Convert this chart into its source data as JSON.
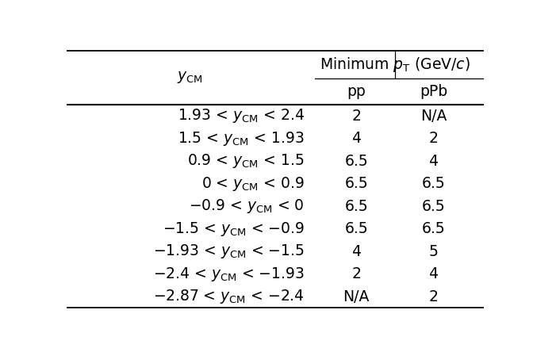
{
  "rapidity_intervals": [
    "1.93 < $y_{\\mathrm{CM}}$ < 2.4",
    "1.5 < $y_{\\mathrm{CM}}$ < 1.93",
    "0.9 < $y_{\\mathrm{CM}}$ < 1.5",
    "0 < $y_{\\mathrm{CM}}$ < 0.9",
    "$-$0.9 < $y_{\\mathrm{CM}}$ < 0",
    "$-$1.5 < $y_{\\mathrm{CM}}$ < $-$0.9",
    "$-$1.93 < $y_{\\mathrm{CM}}$ < $-$1.5",
    "$-$2.4 < $y_{\\mathrm{CM}}$ < $-$1.93",
    "$-$2.87 < $y_{\\mathrm{CM}}$ < $-$2.4"
  ],
  "pp_values": [
    "2",
    "4",
    "6.5",
    "6.5",
    "6.5",
    "6.5",
    "4",
    "2",
    "N/A"
  ],
  "pPb_values": [
    "N/A",
    "2",
    "4",
    "6.5",
    "6.5",
    "6.5",
    "5",
    "4",
    "2"
  ],
  "col_header_main": "Minimum $p_{\\mathrm{T}}$ (GeV/$c$)",
  "col_header_pp": "pp",
  "col_header_pPb": "pPb",
  "row_header": "$y_{\\mathrm{CM}}$",
  "background_color": "#ffffff",
  "text_color": "#000000",
  "fontsize": 13.5,
  "header_fontsize": 13.5
}
